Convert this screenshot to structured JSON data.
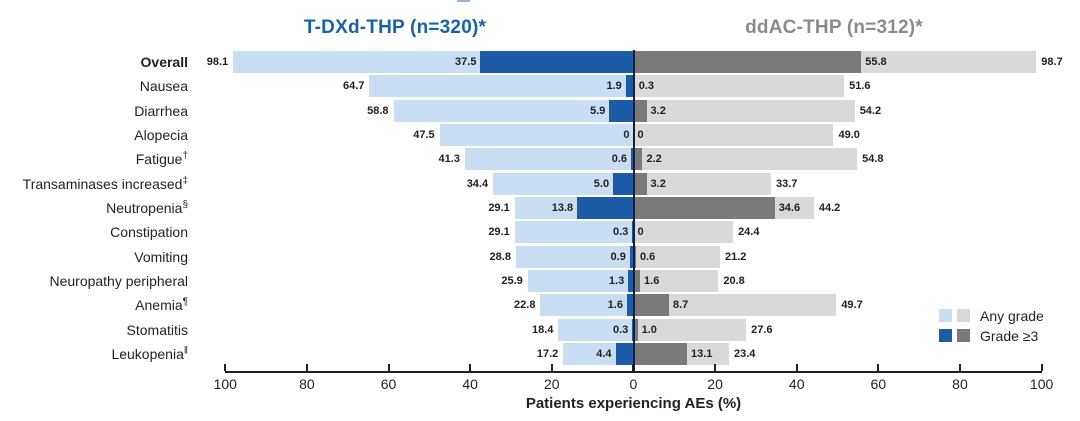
{
  "chart_data": {
    "type": "bar",
    "variant": "diverging-butterfly",
    "xlabel": "Patients experiencing AEs (%)",
    "axis_ticks": [
      "100",
      "80",
      "60",
      "40",
      "20",
      "0",
      "20",
      "40",
      "60",
      "80",
      "100"
    ],
    "xlim_each_side": [
      0,
      100
    ],
    "grid": false,
    "legend_position": "right-bottom",
    "left_group": {
      "title": "T-DXd-THP (n=320)*",
      "title_color": "#1961ac",
      "color_any": "#c9def2",
      "color_g3": "#1b5ba7"
    },
    "right_group": {
      "title": "ddAC-THP (n=312)*",
      "title_color": "#8b8b8b",
      "color_any": "#d9d9d9",
      "color_g3": "#7a7a7d"
    },
    "legend": [
      {
        "label": "Any grade"
      },
      {
        "label": "Grade ≥3"
      }
    ],
    "rows": [
      {
        "label": "Overall",
        "sup": "",
        "bold": true,
        "left": {
          "any": "98.1",
          "g3": "37.5"
        },
        "right": {
          "g3": "55.8",
          "any": "98.7"
        }
      },
      {
        "label": "Nausea",
        "sup": "",
        "bold": false,
        "left": {
          "any": "64.7",
          "g3": "1.9"
        },
        "right": {
          "g3": "0.3",
          "any": "51.6"
        }
      },
      {
        "label": "Diarrhea",
        "sup": "",
        "bold": false,
        "left": {
          "any": "58.8",
          "g3": "5.9"
        },
        "right": {
          "g3": "3.2",
          "any": "54.2"
        }
      },
      {
        "label": "Alopecia",
        "sup": "",
        "bold": false,
        "left": {
          "any": "47.5",
          "g3": "0"
        },
        "right": {
          "g3": "0",
          "any": "49.0"
        }
      },
      {
        "label": "Fatigue",
        "sup": "†",
        "bold": false,
        "left": {
          "any": "41.3",
          "g3": "0.6"
        },
        "right": {
          "g3": "2.2",
          "any": "54.8"
        }
      },
      {
        "label": "Transaminases increased",
        "sup": "‡",
        "bold": false,
        "left": {
          "any": "34.4",
          "g3": "5.0"
        },
        "right": {
          "g3": "3.2",
          "any": "33.7"
        }
      },
      {
        "label": "Neutropenia",
        "sup": "§",
        "bold": false,
        "left": {
          "any": "29.1",
          "g3": "13.8"
        },
        "right": {
          "g3": "34.6",
          "any": "44.2"
        }
      },
      {
        "label": "Constipation",
        "sup": "",
        "bold": false,
        "left": {
          "any": "29.1",
          "g3": "0.3"
        },
        "right": {
          "g3": "0",
          "any": "24.4"
        }
      },
      {
        "label": "Vomiting",
        "sup": "",
        "bold": false,
        "left": {
          "any": "28.8",
          "g3": "0.9"
        },
        "right": {
          "g3": "0.6",
          "any": "21.2"
        }
      },
      {
        "label": "Neuropathy peripheral",
        "sup": "",
        "bold": false,
        "left": {
          "any": "25.9",
          "g3": "1.3"
        },
        "right": {
          "g3": "1.6",
          "any": "20.8"
        }
      },
      {
        "label": "Anemia",
        "sup": "¶",
        "bold": false,
        "left": {
          "any": "22.8",
          "g3": "1.6"
        },
        "right": {
          "g3": "8.7",
          "any": "49.7"
        }
      },
      {
        "label": "Stomatitis",
        "sup": "",
        "bold": false,
        "left": {
          "any": "18.4",
          "g3": "0.3"
        },
        "right": {
          "g3": "1.0",
          "any": "27.6"
        }
      },
      {
        "label": "Leukopenia",
        "sup": "‖",
        "bold": false,
        "left": {
          "any": "17.2",
          "g3": "4.4"
        },
        "right": {
          "g3": "13.1",
          "any": "23.4"
        }
      }
    ],
    "text_color": "#231f20"
  }
}
